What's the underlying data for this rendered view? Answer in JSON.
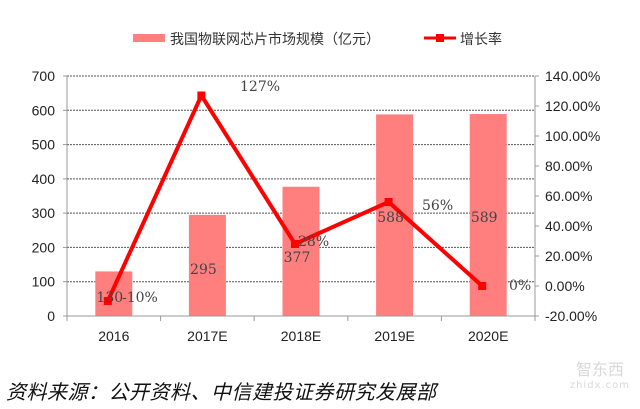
{
  "chart_data": {
    "type": "bar+line",
    "title": "",
    "categories": [
      "2016",
      "2017E",
      "2018E",
      "2019E",
      "2020E"
    ],
    "series": [
      {
        "name": "我国物联网芯片市场规模（亿元）",
        "type": "bar",
        "axis": "left",
        "color": "#ff7f7f",
        "values": [
          130,
          295,
          377,
          588,
          589
        ],
        "labels": [
          "130",
          "295",
          "377",
          "588",
          "589"
        ]
      },
      {
        "name": "增长率",
        "type": "line",
        "axis": "right",
        "color": "#ff0000",
        "values": [
          -10,
          127,
          28,
          56,
          0
        ],
        "labels": [
          "-10%",
          "127%",
          "28%",
          "56%",
          "0%"
        ]
      }
    ],
    "left_axis": {
      "min": 0,
      "max": 700,
      "step": 100,
      "ticks": [
        "0",
        "100",
        "200",
        "300",
        "400",
        "500",
        "600",
        "700"
      ]
    },
    "right_axis": {
      "min": -20,
      "max": 140,
      "step": 20,
      "ticks": [
        "-20.00%",
        "0.00%",
        "20.00%",
        "40.00%",
        "60.00%",
        "80.00%",
        "100.00%",
        "120.00%",
        "140.00%"
      ]
    },
    "grid": "horizontal dashed",
    "legend_position": "top"
  },
  "legend": {
    "bar_label": "我国物联网芯片市场规模（亿元）",
    "line_label": "增长率"
  },
  "source": "资料来源：公开资料、中信建投证券研究发展部",
  "watermark": {
    "main": "智东西",
    "sub": "zhidx.com"
  }
}
